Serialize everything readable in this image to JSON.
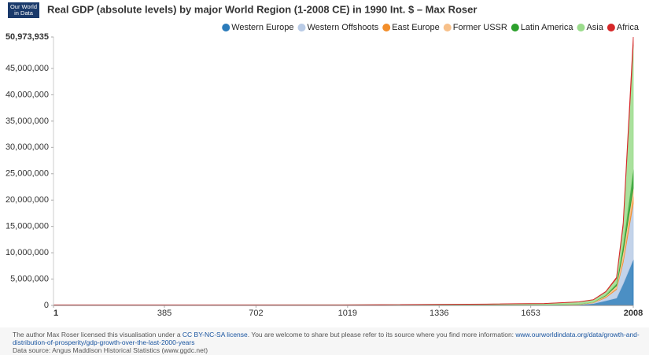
{
  "logo": "Our World in Data",
  "chart_data": {
    "type": "stacked-area",
    "title": "Real GDP (absolute levels) by major World Region (1-2008 CE) in 1990 Int. $ – Max Roser",
    "x": [
      1,
      1000,
      1500,
      1600,
      1700,
      1820,
      1870,
      1913,
      1950,
      1973,
      2008
    ],
    "xlim": [
      1,
      2008
    ],
    "xticks": [
      1,
      385,
      702,
      1019,
      1336,
      1653,
      2008
    ],
    "ylim": [
      0,
      50973935
    ],
    "yticks": [
      0,
      {
        "value": 5000000,
        "label": "5,000,000"
      },
      {
        "value": 10000000,
        "label": "10,000,000"
      },
      {
        "value": 15000000,
        "label": "15,000,000"
      },
      {
        "value": 20000000,
        "label": "20,000,000"
      },
      {
        "value": 25000000,
        "label": "25,000,000"
      },
      {
        "value": 30000000,
        "label": "30,000,000"
      },
      {
        "value": 35000000,
        "label": "35,000,000"
      },
      {
        "value": 40000000,
        "label": "40,000,000"
      },
      {
        "value": 45000000,
        "label": "45,000,000"
      },
      {
        "value": 50973935,
        "label": "50,973,935"
      }
    ],
    "legend_position": "top-right",
    "series": [
      {
        "name": "Western Europe",
        "color": "#2b7bba",
        "values": [
          14433,
          10165,
          44183,
          65602,
          83279,
          160145,
          367588,
          902341,
          1396188,
          4096456,
          8698375
        ]
      },
      {
        "name": "Western Offshoots",
        "color": "#b9cbe6",
        "values": [
          468,
          784,
          1120,
          1135,
          1043,
          13548,
          111500,
          582941,
          1635490,
          4058289,
          10685000
        ]
      },
      {
        "name": "East Europe",
        "color": "#f28e2b",
        "values": [
          1956,
          2600,
          6696,
          9289,
          11393,
          25450,
          50163,
          134793,
          185023,
          550756,
          1320000
        ]
      },
      {
        "name": "Former USSR",
        "color": "#f7c08a",
        "values": [
          1560,
          2840,
          8458,
          11426,
          16196,
          37678,
          83646,
          232351,
          510243,
          1513070,
          1600000
        ]
      },
      {
        "name": "Latin America",
        "color": "#2ca02c",
        "values": [
          2240,
          4560,
          7288,
          3763,
          6346,
          14921,
          27505,
          119883,
          415907,
          1389460,
          3500000
        ]
      },
      {
        "name": "Asia",
        "color": "#9bdc8c",
        "values": [
          77000,
          78930,
          163040,
          216000,
          229000,
          412000,
          418000,
          608000,
          986000,
          3500000,
          23670560
        ]
      },
      {
        "name": "Africa",
        "color": "#d62728",
        "values": [
          7013,
          13723,
          19283,
          23473,
          25571,
          31266,
          45234,
          79486,
          203131,
          549993,
          1500000
        ]
      }
    ]
  },
  "footer": {
    "text1": "The author Max Roser licensed this visualisation under a ",
    "license": "CC BY-NC-SA license",
    "text2": ". You are welcome to share but please refer to its source where you find more information: ",
    "url": "www.ourworldindata.org/data/growth-and-distribution-of-prosperity/gdp-growth-over-the-last-2000-years",
    "source": "Data source: Angus Maddison Historical Statistics (www.ggdc.net)"
  }
}
